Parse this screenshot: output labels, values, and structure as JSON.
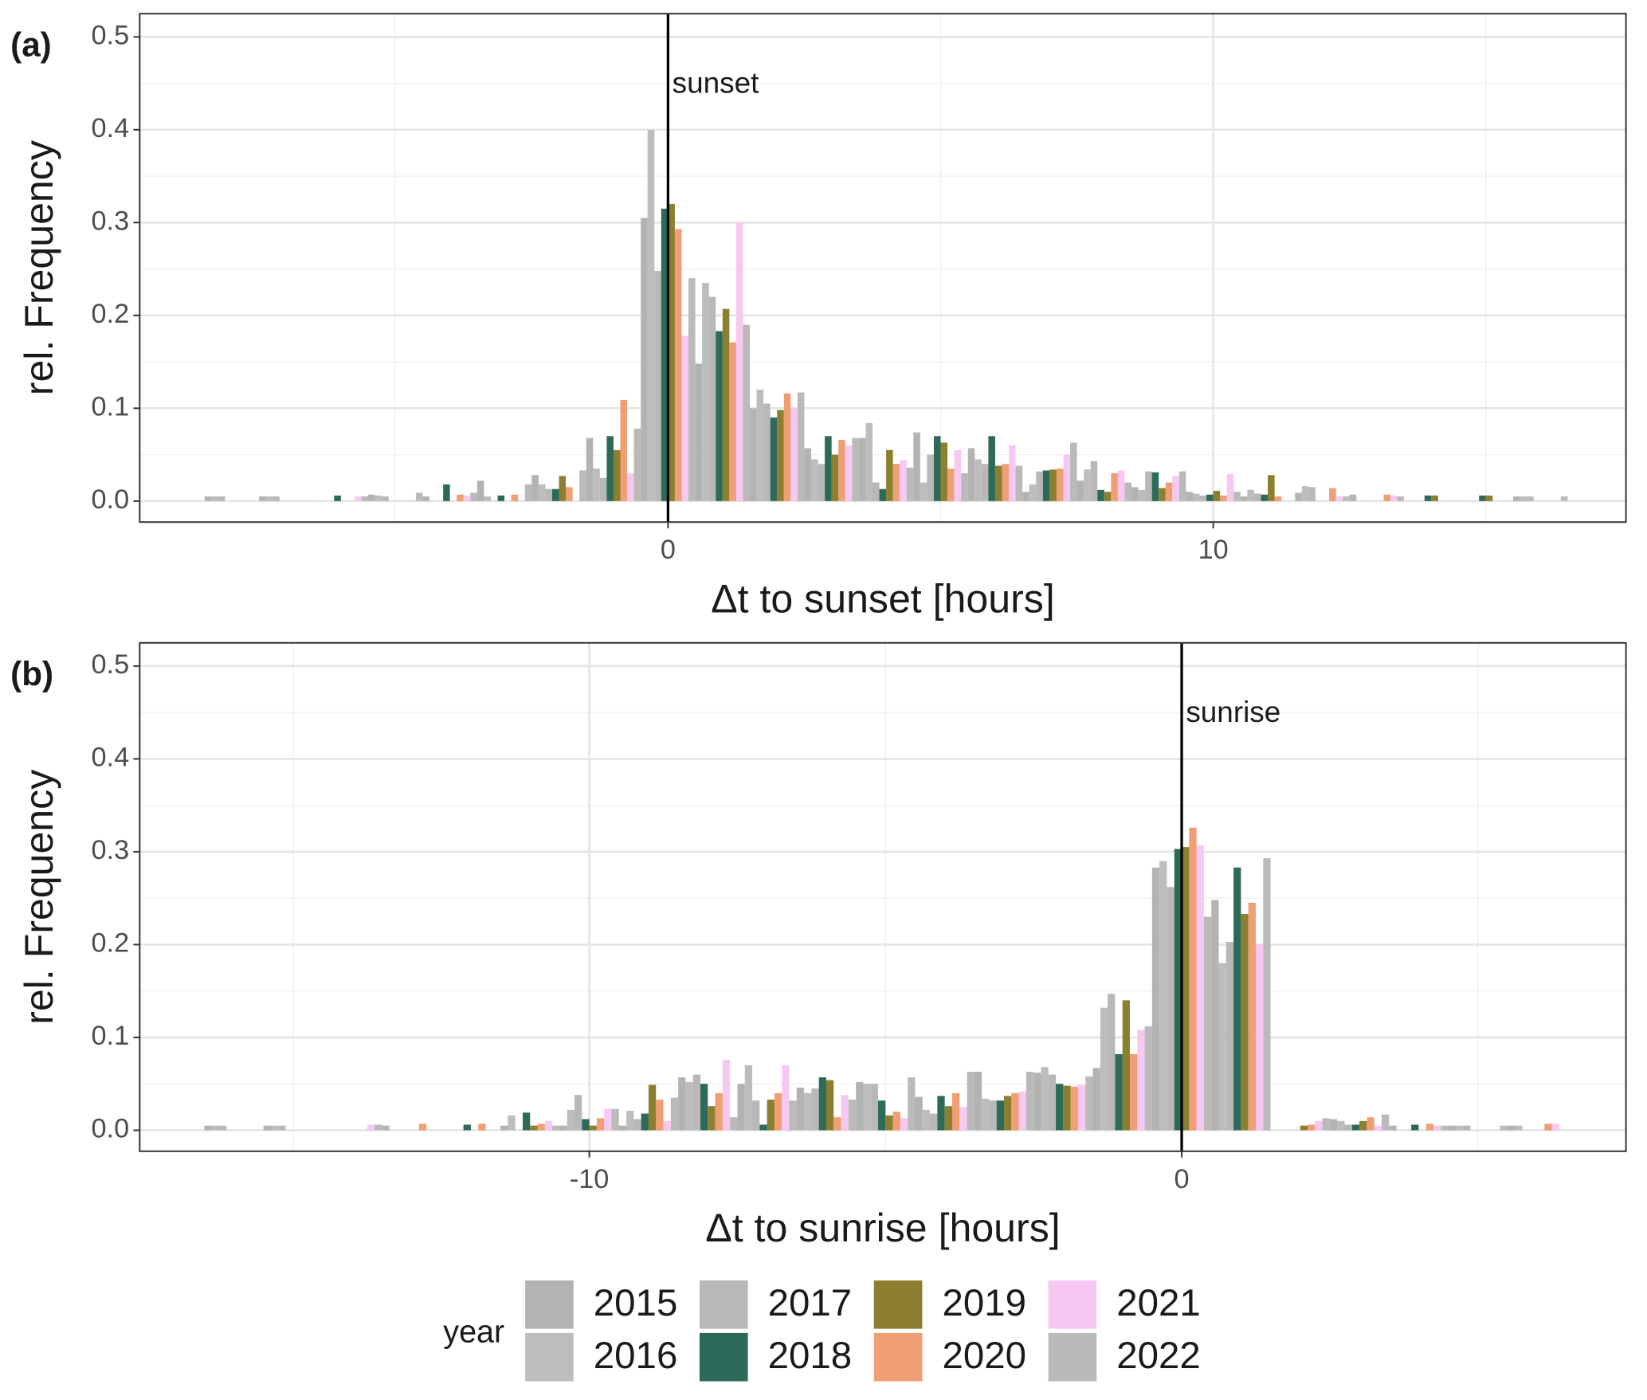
{
  "chart_data": [
    {
      "type": "bar",
      "panel_label": "(a)",
      "xlabel": "Δt to sunset [hours]",
      "ylabel": "rel. Frequency",
      "xlim": [
        -9.69,
        17.57
      ],
      "ylim": [
        -0.0226,
        0.525
      ],
      "xticks": [
        0,
        10
      ],
      "yticks": [
        {
          "value": 0,
          "label": "0.0"
        },
        0.1,
        0.2,
        0.3,
        0.4,
        0.5
      ],
      "grid": true,
      "vline": {
        "x": 0,
        "label": "sunset"
      },
      "x": [
        -8,
        -7,
        -6,
        -5,
        -4,
        -3,
        -2,
        -1,
        0,
        1,
        2,
        3,
        4,
        5,
        6,
        7,
        8,
        9,
        10,
        11,
        12,
        13,
        14,
        15,
        16
      ],
      "series": [
        {
          "name": "2015",
          "color": "#b3b3b3",
          "values": [
            0.005,
            0.005,
            null,
            0.007,
            0.005,
            0.022,
            0.028,
            0.068,
            0.305,
            0.148,
            0.1,
            0.057,
            0.068,
            0.074,
            0.057,
            0.01,
            0.022,
            0.015,
            0.01,
            0.005,
            0.009,
            0.007,
            null,
            null,
            0.005
          ]
        },
        {
          "name": "2016",
          "color": "#bdbdbd",
          "values": [
            0.005,
            0.005,
            null,
            0.006,
            null,
            0.005,
            0.018,
            0.035,
            0.4,
            0.235,
            0.12,
            0.045,
            0.084,
            0.02,
            0.045,
            0.018,
            0.034,
            0.012,
            0.008,
            0.012,
            0.016,
            null,
            null,
            null,
            0.005
          ]
        },
        {
          "name": "2017",
          "color": "#b8b8b8",
          "values": [
            0.005,
            0.005,
            null,
            0.005,
            null,
            null,
            0.013,
            0.025,
            0.248,
            0.22,
            0.105,
            0.04,
            0.02,
            0.05,
            0.04,
            0.032,
            0.043,
            0.032,
            0.006,
            0.008,
            0.015,
            null,
            null,
            null,
            0.005
          ]
        },
        {
          "name": "2018",
          "color": "#2e6a5a",
          "values": [
            null,
            null,
            0.006,
            null,
            0.018,
            0.006,
            0.013,
            0.07,
            0.315,
            0.183,
            0.09,
            0.07,
            0.013,
            0.07,
            0.07,
            0.033,
            0.012,
            0.031,
            0.007,
            0.007,
            null,
            null,
            0.006,
            0.006,
            null
          ]
        },
        {
          "name": "2019",
          "color": "#8b8030",
          "values": [
            null,
            null,
            null,
            null,
            null,
            null,
            0.027,
            0.055,
            0.32,
            0.207,
            0.098,
            0.05,
            0.055,
            0.063,
            0.038,
            0.034,
            0.01,
            0.014,
            0.011,
            0.028,
            null,
            null,
            0.006,
            0.006,
            null
          ]
        },
        {
          "name": "2020",
          "color": "#f09e74",
          "values": [
            null,
            null,
            null,
            null,
            0.007,
            0.007,
            0.015,
            0.109,
            0.293,
            0.171,
            0.116,
            0.066,
            0.04,
            0.035,
            0.04,
            0.035,
            0.03,
            0.02,
            0.006,
            0.005,
            0.014,
            0.007,
            null,
            null,
            null
          ]
        },
        {
          "name": "2021",
          "color": "#f7c8f2",
          "values": [
            null,
            null,
            0.005,
            null,
            0.006,
            null,
            null,
            0.03,
            0.178,
            0.3,
            0.1,
            0.06,
            0.044,
            0.055,
            0.06,
            0.05,
            0.033,
            0.027,
            0.029,
            null,
            0.005,
            0.006,
            null,
            null,
            null
          ]
        },
        {
          "name": "2022",
          "color": "#bababa",
          "values": [
            null,
            null,
            0.005,
            0.009,
            0.009,
            0.018,
            0.033,
            0.078,
            0.24,
            0.19,
            0.117,
            0.068,
            0.036,
            0.03,
            0.038,
            0.063,
            0.02,
            0.032,
            0.01,
            null,
            0.005,
            0.005,
            null,
            null,
            0.005
          ]
        }
      ]
    },
    {
      "type": "bar",
      "panel_label": "(b)",
      "xlabel": "Δt to sunrise [hours]",
      "ylabel": "rel. Frequency",
      "xlim": [
        -17.59,
        7.5
      ],
      "ylim": [
        -0.0226,
        0.525
      ],
      "xticks": [
        -10,
        0
      ],
      "yticks": [
        {
          "value": 0,
          "label": "0.0"
        },
        0.1,
        0.2,
        0.3,
        0.4,
        0.5
      ],
      "grid": true,
      "vline": {
        "x": 0,
        "label": "sunrise"
      },
      "x": [
        -16,
        -15,
        -14,
        -13,
        -12,
        -11,
        -10,
        -9,
        -8,
        -7,
        -6,
        -5,
        -4,
        -3,
        -2,
        -1,
        0,
        1,
        2,
        3,
        4,
        5,
        6
      ],
      "series": [
        {
          "name": "2015",
          "color": "#b3b3b3",
          "values": [
            0.005,
            0.005,
            null,
            0.005,
            null,
            0.005,
            0.005,
            0.005,
            0.057,
            0.05,
            0.046,
            0.052,
            0.036,
            0.063,
            0.062,
            0.067,
            0.283,
            0.248,
            null,
            0.012,
            0.005,
            0.005,
            0.005
          ]
        },
        {
          "name": "2016",
          "color": "#bdbdbd",
          "values": [
            0.005,
            0.005,
            null,
            null,
            null,
            0.016,
            0.022,
            0.021,
            0.052,
            0.07,
            0.04,
            0.05,
            0.022,
            0.034,
            0.068,
            0.132,
            0.29,
            0.18,
            null,
            0.01,
            null,
            0.005,
            0.005
          ]
        },
        {
          "name": "2017",
          "color": "#b8b8b8",
          "values": [
            0.005,
            0.005,
            null,
            null,
            null,
            null,
            0.038,
            0.012,
            0.06,
            0.032,
            0.045,
            0.05,
            0.018,
            0.032,
            0.06,
            0.147,
            0.262,
            0.203,
            null,
            0.006,
            null,
            0.005,
            null
          ]
        },
        {
          "name": "2018",
          "color": "#2e6a5a",
          "values": [
            null,
            null,
            null,
            null,
            0.006,
            0.019,
            0.012,
            0.018,
            0.05,
            0.006,
            0.057,
            0.032,
            0.037,
            0.032,
            0.05,
            0.082,
            0.303,
            0.283,
            null,
            0.006,
            0.006,
            null,
            null
          ]
        },
        {
          "name": "2019",
          "color": "#8b8030",
          "values": [
            null,
            null,
            null,
            null,
            null,
            0.005,
            0.005,
            0.049,
            0.026,
            0.033,
            0.054,
            0.016,
            0.026,
            0.037,
            0.048,
            0.14,
            0.305,
            0.233,
            0.005,
            0.01,
            null,
            null,
            null
          ]
        },
        {
          "name": "2020",
          "color": "#f09e74",
          "values": [
            null,
            null,
            null,
            0.007,
            0.007,
            0.007,
            0.013,
            0.033,
            0.04,
            0.04,
            0.014,
            0.02,
            0.04,
            0.04,
            0.047,
            0.082,
            0.326,
            0.245,
            0.006,
            0.014,
            0.007,
            null,
            0.007
          ]
        },
        {
          "name": "2021",
          "color": "#f7c8f2",
          "values": [
            null,
            null,
            0.006,
            null,
            null,
            0.01,
            0.023,
            0.01,
            0.076,
            0.07,
            0.038,
            0.013,
            0.025,
            0.042,
            0.049,
            0.108,
            0.307,
            0.2,
            0.01,
            0.005,
            0.005,
            null,
            0.007
          ]
        },
        {
          "name": "2022",
          "color": "#bababa",
          "values": [
            null,
            null,
            0.006,
            null,
            null,
            0.005,
            0.023,
            0.035,
            0.014,
            0.032,
            0.033,
            0.057,
            0.063,
            0.063,
            0.058,
            0.112,
            0.23,
            0.293,
            0.013,
            0.017,
            0.005,
            0.005,
            null
          ]
        }
      ]
    }
  ],
  "legend": {
    "title": "year"
  }
}
